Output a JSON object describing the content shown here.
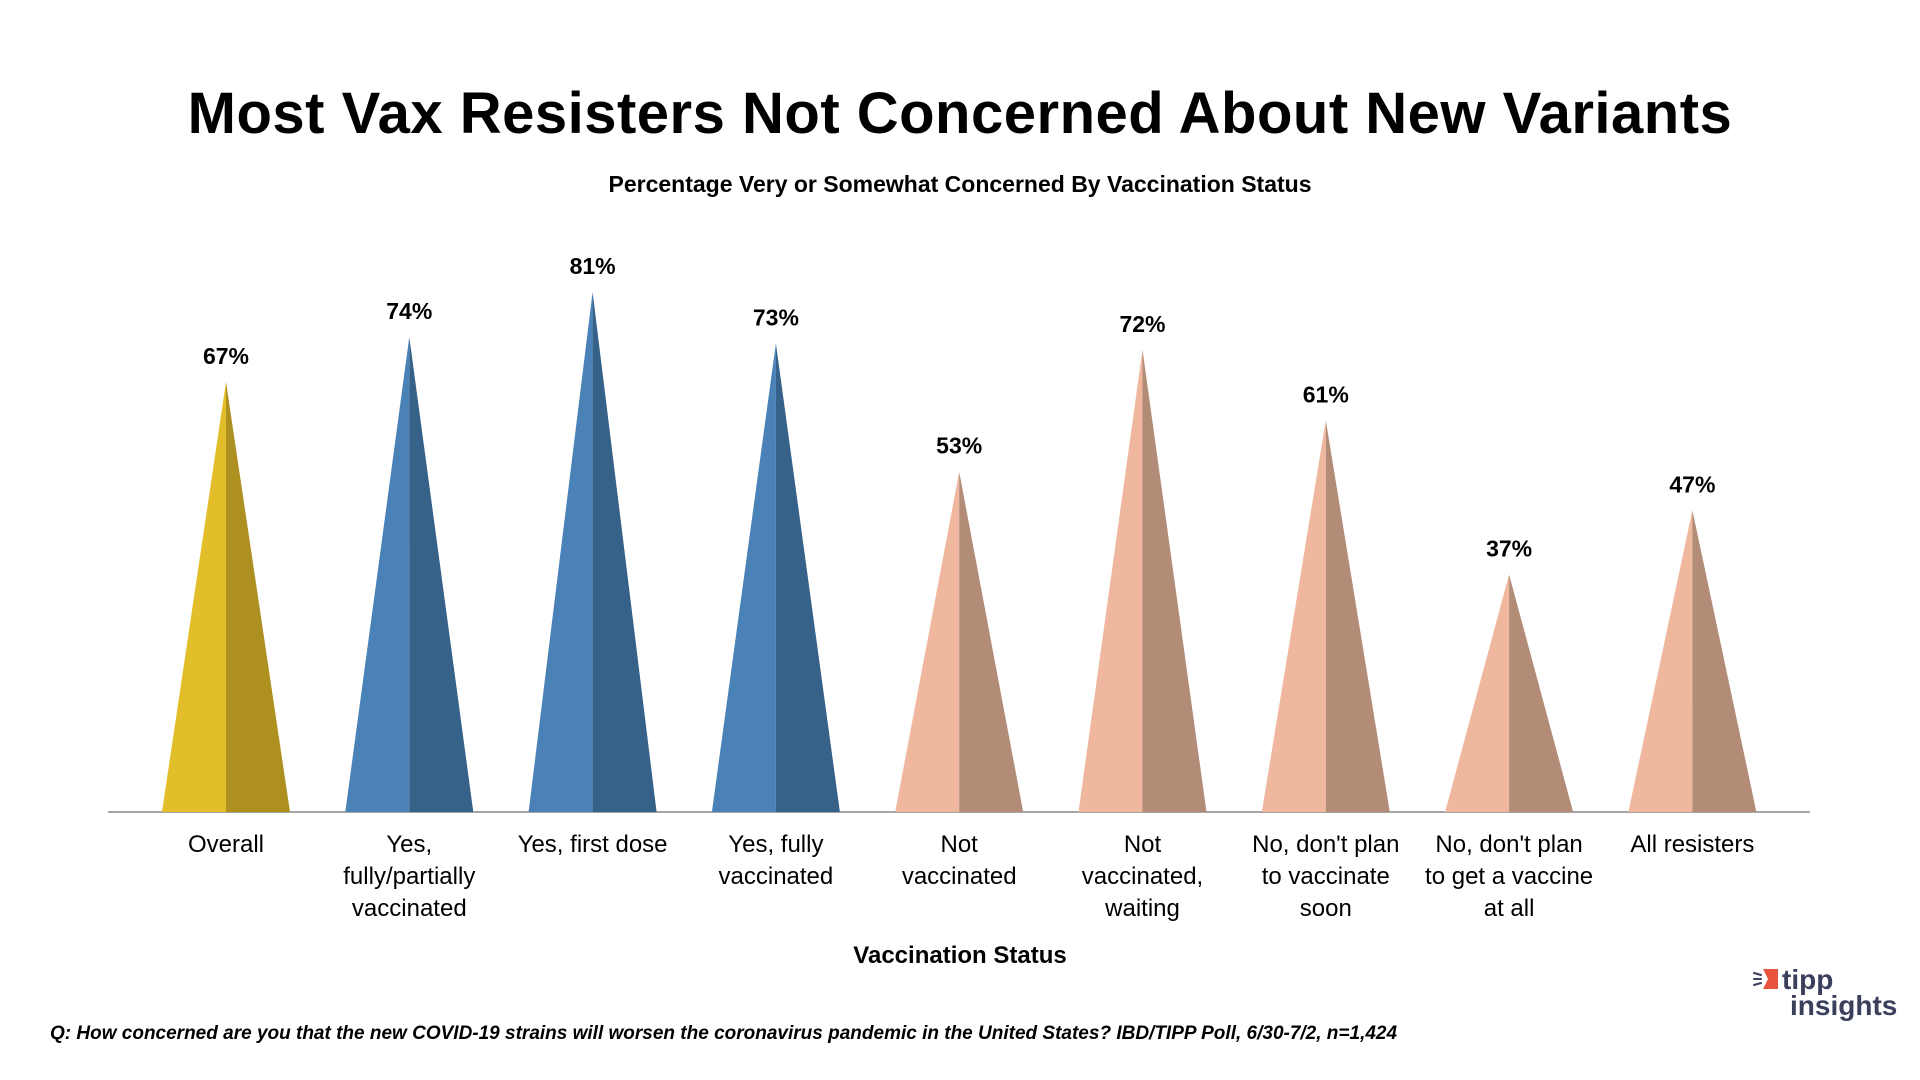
{
  "title": "Most Vax Resisters Not Concerned About New Variants",
  "subtitle": "Percentage Very or Somewhat Concerned By Vaccination Status",
  "footnote": "Q:  How concerned are you that the new COVID-19 strains will worsen the coronavirus pandemic in the United States?  IBD/TIPP Poll, 6/30-7/2, n=1,424",
  "logo": {
    "line1": "tipp",
    "line2": "insights"
  },
  "chart_data": {
    "type": "bar",
    "title": "Most Vax Resisters Not Concerned About New Variants",
    "subtitle": "Percentage Very or Somewhat Concerned By Vaccination Status",
    "xlabel": "Vaccination Status",
    "ylabel": "",
    "ylim": [
      0,
      100
    ],
    "grid": false,
    "categories": [
      "Overall",
      "Yes, fully/partially vaccinated",
      "Yes, first dose",
      "Yes, fully vaccinated",
      "Not vaccinated",
      "Not vaccinated, waiting",
      "No, don't plan to vaccinate soon",
      "No, don't plan to get a vaccine at all",
      "All resisters"
    ],
    "category_display": [
      "Overall",
      "Yes,\nfully/partially\nvaccinated",
      "Yes, first dose",
      "Yes, fully\nvaccinated",
      "Not\nvaccinated",
      "Not\nvaccinated,\nwaiting",
      "No, don't plan\nto vaccinate\nsoon",
      "No, don't plan\nto get a vaccine\nat all",
      "All resisters"
    ],
    "values": [
      67,
      74,
      81,
      73,
      53,
      72,
      61,
      37,
      47
    ],
    "data_labels": [
      "67%",
      "74%",
      "81%",
      "73%",
      "53%",
      "72%",
      "61%",
      "37%",
      "47%"
    ],
    "colors": [
      [
        "#E2BE2A",
        "#AD9020"
      ],
      [
        "#4A82B7",
        "#36628A"
      ],
      [
        "#4A82B7",
        "#36628A"
      ],
      [
        "#4A82B7",
        "#36628A"
      ],
      [
        "#EEB79E",
        "#B38C78"
      ],
      [
        "#EEB79E",
        "#B38C78"
      ],
      [
        "#EEB79E",
        "#B38C78"
      ],
      [
        "#EEB79E",
        "#B38C78"
      ],
      [
        "#EEB79E",
        "#B38C78"
      ]
    ]
  }
}
